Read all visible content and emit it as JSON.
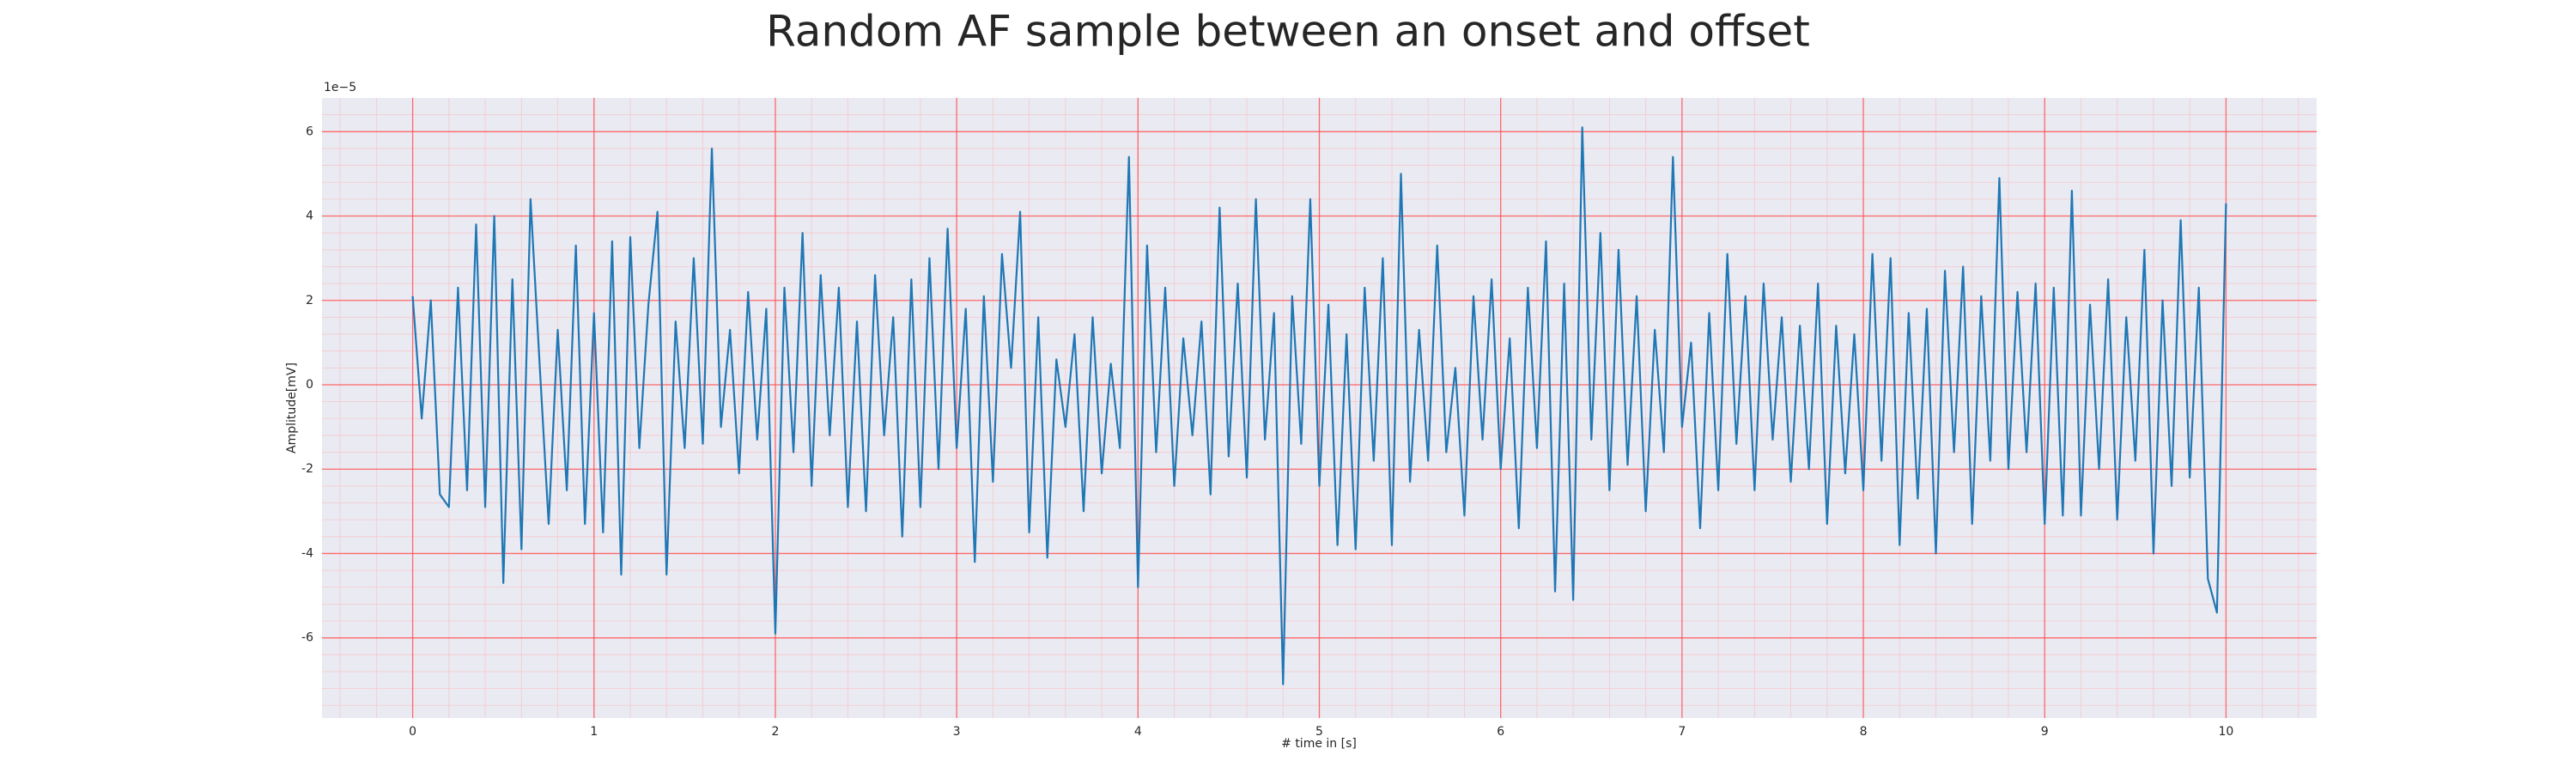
{
  "chart_data": {
    "type": "line",
    "title": "Random AF sample between an onset and offset",
    "xlabel": "# time in [s]",
    "ylabel": "Amplitude[mV]",
    "y_offset_label": "1e−5",
    "color": "#1f77b4",
    "grid": true,
    "minor_grid": true,
    "xlim": [
      -0.5,
      10.5
    ],
    "ylim": [
      -7.9,
      6.8
    ],
    "xticks": [
      0,
      1,
      2,
      3,
      4,
      5,
      6,
      7,
      8,
      9,
      10
    ],
    "yticks": [
      -6,
      -4,
      -2,
      0,
      2,
      4,
      6
    ],
    "x": [
      0,
      0.05,
      0.1,
      0.15,
      0.2,
      0.25,
      0.3,
      0.35,
      0.4,
      0.45,
      0.5,
      0.55,
      0.6,
      0.65,
      0.7,
      0.75,
      0.8,
      0.85,
      0.9,
      0.95,
      1,
      1.05,
      1.1,
      1.15,
      1.2,
      1.25,
      1.3,
      1.35,
      1.4,
      1.45,
      1.5,
      1.55,
      1.6,
      1.65,
      1.7,
      1.75,
      1.8,
      1.85,
      1.9,
      1.95,
      2,
      2.05,
      2.1,
      2.15,
      2.2,
      2.25,
      2.3,
      2.35,
      2.4,
      2.45,
      2.5,
      2.55,
      2.6,
      2.65,
      2.7,
      2.75,
      2.8,
      2.85,
      2.9,
      2.95,
      3,
      3.05,
      3.1,
      3.15,
      3.2,
      3.25,
      3.3,
      3.35,
      3.4,
      3.45,
      3.5,
      3.55,
      3.6,
      3.65,
      3.7,
      3.75,
      3.8,
      3.85,
      3.9,
      3.95,
      4,
      4.05,
      4.1,
      4.15,
      4.2,
      4.25,
      4.3,
      4.35,
      4.4,
      4.45,
      4.5,
      4.55,
      4.6,
      4.65,
      4.7,
      4.75,
      4.8,
      4.85,
      4.9,
      4.95,
      5,
      5.05,
      5.1,
      5.15,
      5.2,
      5.25,
      5.3,
      5.35,
      5.4,
      5.45,
      5.5,
      5.55,
      5.6,
      5.65,
      5.7,
      5.75,
      5.8,
      5.85,
      5.9,
      5.95,
      6,
      6.05,
      6.1,
      6.15,
      6.2,
      6.25,
      6.3,
      6.35,
      6.4,
      6.45,
      6.5,
      6.55,
      6.6,
      6.65,
      6.7,
      6.75,
      6.8,
      6.85,
      6.9,
      6.95,
      7,
      7.05,
      7.1,
      7.15,
      7.2,
      7.25,
      7.3,
      7.35,
      7.4,
      7.45,
      7.5,
      7.55,
      7.6,
      7.65,
      7.7,
      7.75,
      7.8,
      7.85,
      7.9,
      7.95,
      8,
      8.05,
      8.1,
      8.15,
      8.2,
      8.25,
      8.3,
      8.35,
      8.4,
      8.45,
      8.5,
      8.55,
      8.6,
      8.65,
      8.7,
      8.75,
      8.8,
      8.85,
      8.9,
      8.95,
      9,
      9.05,
      9.1,
      9.15,
      9.2,
      9.25,
      9.3,
      9.35,
      9.4,
      9.45,
      9.5,
      9.55,
      9.6,
      9.65,
      9.7,
      9.75,
      9.8,
      9.85,
      9.9,
      9.95,
      10
    ],
    "values": [
      2.1,
      -0.8,
      2.0,
      -2.6,
      -2.9,
      2.3,
      -2.5,
      3.8,
      -2.9,
      4.0,
      -4.7,
      2.5,
      -3.9,
      4.4,
      0.5,
      -3.3,
      1.3,
      -2.5,
      3.3,
      -3.3,
      1.7,
      -3.5,
      3.4,
      -4.5,
      3.5,
      -1.5,
      1.9,
      4.1,
      -4.5,
      1.5,
      -1.5,
      3.0,
      -1.4,
      5.6,
      -1.0,
      1.3,
      -2.1,
      2.2,
      -1.3,
      1.8,
      -5.9,
      2.3,
      -1.6,
      3.6,
      -2.4,
      2.6,
      -1.2,
      2.3,
      -2.9,
      1.5,
      -3.0,
      2.6,
      -1.2,
      1.6,
      -3.6,
      2.5,
      -2.9,
      3.0,
      -2.0,
      3.7,
      -1.5,
      1.8,
      -4.2,
      2.1,
      -2.3,
      3.1,
      0.4,
      4.1,
      -3.5,
      1.6,
      -4.1,
      0.6,
      -1.0,
      1.2,
      -3.0,
      1.6,
      -2.1,
      0.5,
      -1.5,
      5.4,
      -4.8,
      3.3,
      -1.6,
      2.3,
      -2.4,
      1.1,
      -1.2,
      1.5,
      -2.6,
      4.2,
      -1.7,
      2.4,
      -2.2,
      4.4,
      -1.3,
      1.7,
      -7.1,
      2.1,
      -1.4,
      4.4,
      -2.4,
      1.9,
      -3.8,
      1.2,
      -3.9,
      2.3,
      -1.8,
      3.0,
      -3.8,
      5.0,
      -2.3,
      1.3,
      -1.8,
      3.3,
      -1.6,
      0.4,
      -3.1,
      2.1,
      -1.3,
      2.5,
      -2.0,
      1.1,
      -3.4,
      2.3,
      -1.5,
      3.4,
      -4.9,
      2.4,
      -5.1,
      6.1,
      -1.3,
      3.6,
      -2.5,
      3.2,
      -1.9,
      2.1,
      -3.0,
      1.3,
      -1.6,
      5.4,
      -1.0,
      1.0,
      -3.4,
      1.7,
      -2.5,
      3.1,
      -1.4,
      2.1,
      -2.5,
      2.4,
      -1.3,
      1.6,
      -2.3,
      1.4,
      -2.0,
      2.4,
      -3.3,
      1.4,
      -2.1,
      1.2,
      -2.5,
      3.1,
      -1.8,
      3.0,
      -3.8,
      1.7,
      -2.7,
      1.8,
      -4.0,
      2.7,
      -1.6,
      2.8,
      -3.3,
      2.1,
      -1.8,
      4.9,
      -2.0,
      2.2,
      -1.6,
      2.4,
      -3.3,
      2.3,
      -3.1,
      4.6,
      -3.1,
      1.9,
      -2.0,
      2.5,
      -3.2,
      1.6,
      -1.8,
      3.2,
      -4.0,
      2.0,
      -2.4,
      3.9,
      -2.2,
      2.3,
      -4.6,
      -5.4,
      4.3
    ]
  }
}
